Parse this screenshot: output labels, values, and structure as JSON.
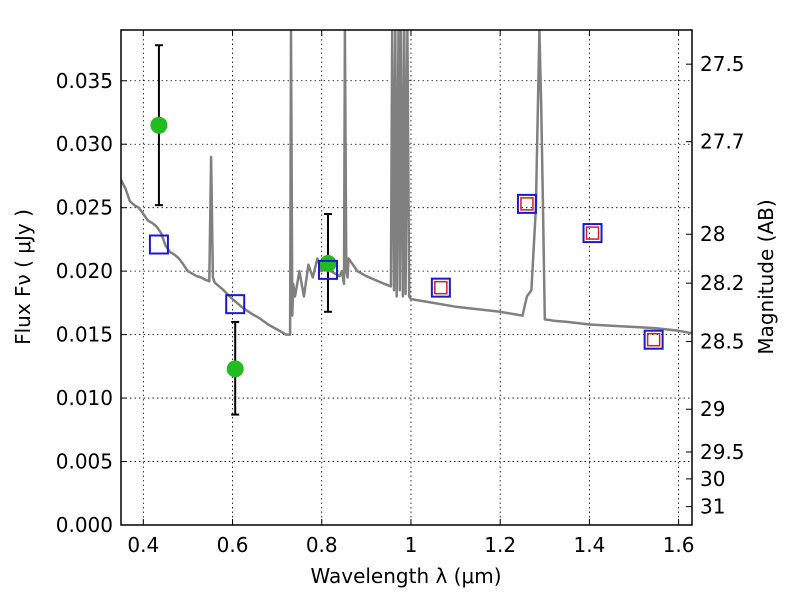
{
  "chart_data": {
    "type": "scatter",
    "title": "",
    "xlabel": "Wavelength  λ (μm)",
    "ylabel": "Flux  Fν ( μJy )",
    "ylabel_right": "Magnitude (AB)",
    "xlim": [
      0.35,
      1.63
    ],
    "ylim": [
      0.0,
      0.039
    ],
    "grid": true,
    "x_ticks": [
      {
        "value": 0.4,
        "label": "0.4"
      },
      {
        "value": 0.6,
        "label": "0.6"
      },
      {
        "value": 0.8,
        "label": "0.8"
      },
      {
        "value": 1.0,
        "label": "1"
      },
      {
        "value": 1.2,
        "label": "1.2"
      },
      {
        "value": 1.4,
        "label": "1.4"
      },
      {
        "value": 1.6,
        "label": "1.6"
      }
    ],
    "y_ticks": [
      {
        "value": 0.0,
        "label": "0.000"
      },
      {
        "value": 0.005,
        "label": "0.005"
      },
      {
        "value": 0.01,
        "label": "0.010"
      },
      {
        "value": 0.015,
        "label": "0.015"
      },
      {
        "value": 0.02,
        "label": "0.020"
      },
      {
        "value": 0.025,
        "label": "0.025"
      },
      {
        "value": 0.03,
        "label": "0.030"
      },
      {
        "value": 0.035,
        "label": "0.035"
      }
    ],
    "right_ticks": [
      {
        "value": 27.5,
        "label": "27.5"
      },
      {
        "value": 27.7,
        "label": "27.7"
      },
      {
        "value": 28.0,
        "label": "28"
      },
      {
        "value": 28.2,
        "label": "28.2"
      },
      {
        "value": 28.5,
        "label": "28.5"
      },
      {
        "value": 29.0,
        "label": "29"
      },
      {
        "value": 29.5,
        "label": "29.5"
      },
      {
        "value": 30.0,
        "label": "30"
      },
      {
        "value": 31.0,
        "label": "31"
      }
    ],
    "series": [
      {
        "kind": "model_spectrum",
        "color": "#808080",
        "x": [
          0.35,
          0.36,
          0.37,
          0.38,
          0.39,
          0.4,
          0.41,
          0.42,
          0.43,
          0.44,
          0.45,
          0.46,
          0.47,
          0.48,
          0.49,
          0.5,
          0.51,
          0.52,
          0.53,
          0.54,
          0.548,
          0.552,
          0.556,
          0.56,
          0.58,
          0.6,
          0.62,
          0.64,
          0.66,
          0.68,
          0.7,
          0.72,
          0.729,
          0.731,
          0.734,
          0.736,
          0.74,
          0.75,
          0.76,
          0.77,
          0.78,
          0.79,
          0.8,
          0.81,
          0.82,
          0.83,
          0.84,
          0.845,
          0.85,
          0.852,
          0.855,
          0.858,
          0.86,
          0.87,
          0.88,
          0.89,
          0.9,
          0.92,
          0.94,
          0.955,
          0.958,
          0.962,
          0.965,
          0.968,
          0.972,
          0.975,
          0.978,
          0.982,
          0.985,
          0.988,
          0.992,
          0.996,
          1.0,
          1.05,
          1.1,
          1.15,
          1.2,
          1.25,
          1.26,
          1.27,
          1.28,
          1.288,
          1.292,
          1.296,
          1.3,
          1.32,
          1.35,
          1.4,
          1.45,
          1.5,
          1.55,
          1.6,
          1.63
        ],
        "y": [
          0.0272,
          0.0265,
          0.0255,
          0.0252,
          0.025,
          0.0245,
          0.024,
          0.0238,
          0.0235,
          0.023,
          0.022,
          0.0215,
          0.0213,
          0.021,
          0.0205,
          0.02,
          0.0198,
          0.0196,
          0.0195,
          0.0193,
          0.0192,
          0.029,
          0.0195,
          0.0191,
          0.0185,
          0.0178,
          0.0172,
          0.0167,
          0.0163,
          0.0158,
          0.0154,
          0.015,
          0.015,
          0.039,
          0.0165,
          0.019,
          0.018,
          0.02,
          0.018,
          0.0205,
          0.0195,
          0.021,
          0.02,
          0.0205,
          0.02,
          0.0198,
          0.0196,
          0.02,
          0.019,
          0.039,
          0.02,
          0.0195,
          0.021,
          0.0205,
          0.02,
          0.0198,
          0.0196,
          0.0193,
          0.019,
          0.0188,
          0.039,
          0.0185,
          0.039,
          0.018,
          0.039,
          0.0185,
          0.039,
          0.018,
          0.039,
          0.0182,
          0.039,
          0.018,
          0.0178,
          0.0175,
          0.0172,
          0.017,
          0.0168,
          0.0165,
          0.018,
          0.0185,
          0.025,
          0.039,
          0.033,
          0.025,
          0.0162,
          0.0161,
          0.016,
          0.0158,
          0.0157,
          0.0156,
          0.0155,
          0.0153,
          0.0151
        ]
      },
      {
        "kind": "observed",
        "marker": "circle",
        "color": "#22bb22",
        "points": [
          {
            "x": 0.435,
            "y": 0.0315,
            "yerr_low": 0.0252,
            "yerr_high": 0.0378
          },
          {
            "x": 0.606,
            "y": 0.0123,
            "yerr_low": 0.0087,
            "yerr_high": 0.016
          },
          {
            "x": 0.814,
            "y": 0.0206,
            "yerr_low": 0.0168,
            "yerr_high": 0.0245
          }
        ]
      },
      {
        "kind": "model_photometry",
        "marker": "square",
        "color": "#1a1acc",
        "points": [
          {
            "x": 0.435,
            "y": 0.0221
          },
          {
            "x": 0.606,
            "y": 0.0174
          },
          {
            "x": 0.814,
            "y": 0.0201
          },
          {
            "x": 1.067,
            "y": 0.0187
          },
          {
            "x": 1.26,
            "y": 0.0253
          },
          {
            "x": 1.407,
            "y": 0.023
          },
          {
            "x": 1.544,
            "y": 0.0146
          }
        ]
      },
      {
        "kind": "model_photometry_inner",
        "marker": "square",
        "color": "#cc2222",
        "points": [
          {
            "x": 1.067,
            "y": 0.0187
          },
          {
            "x": 1.26,
            "y": 0.0253
          },
          {
            "x": 1.407,
            "y": 0.023
          },
          {
            "x": 1.544,
            "y": 0.0146
          }
        ]
      }
    ]
  }
}
